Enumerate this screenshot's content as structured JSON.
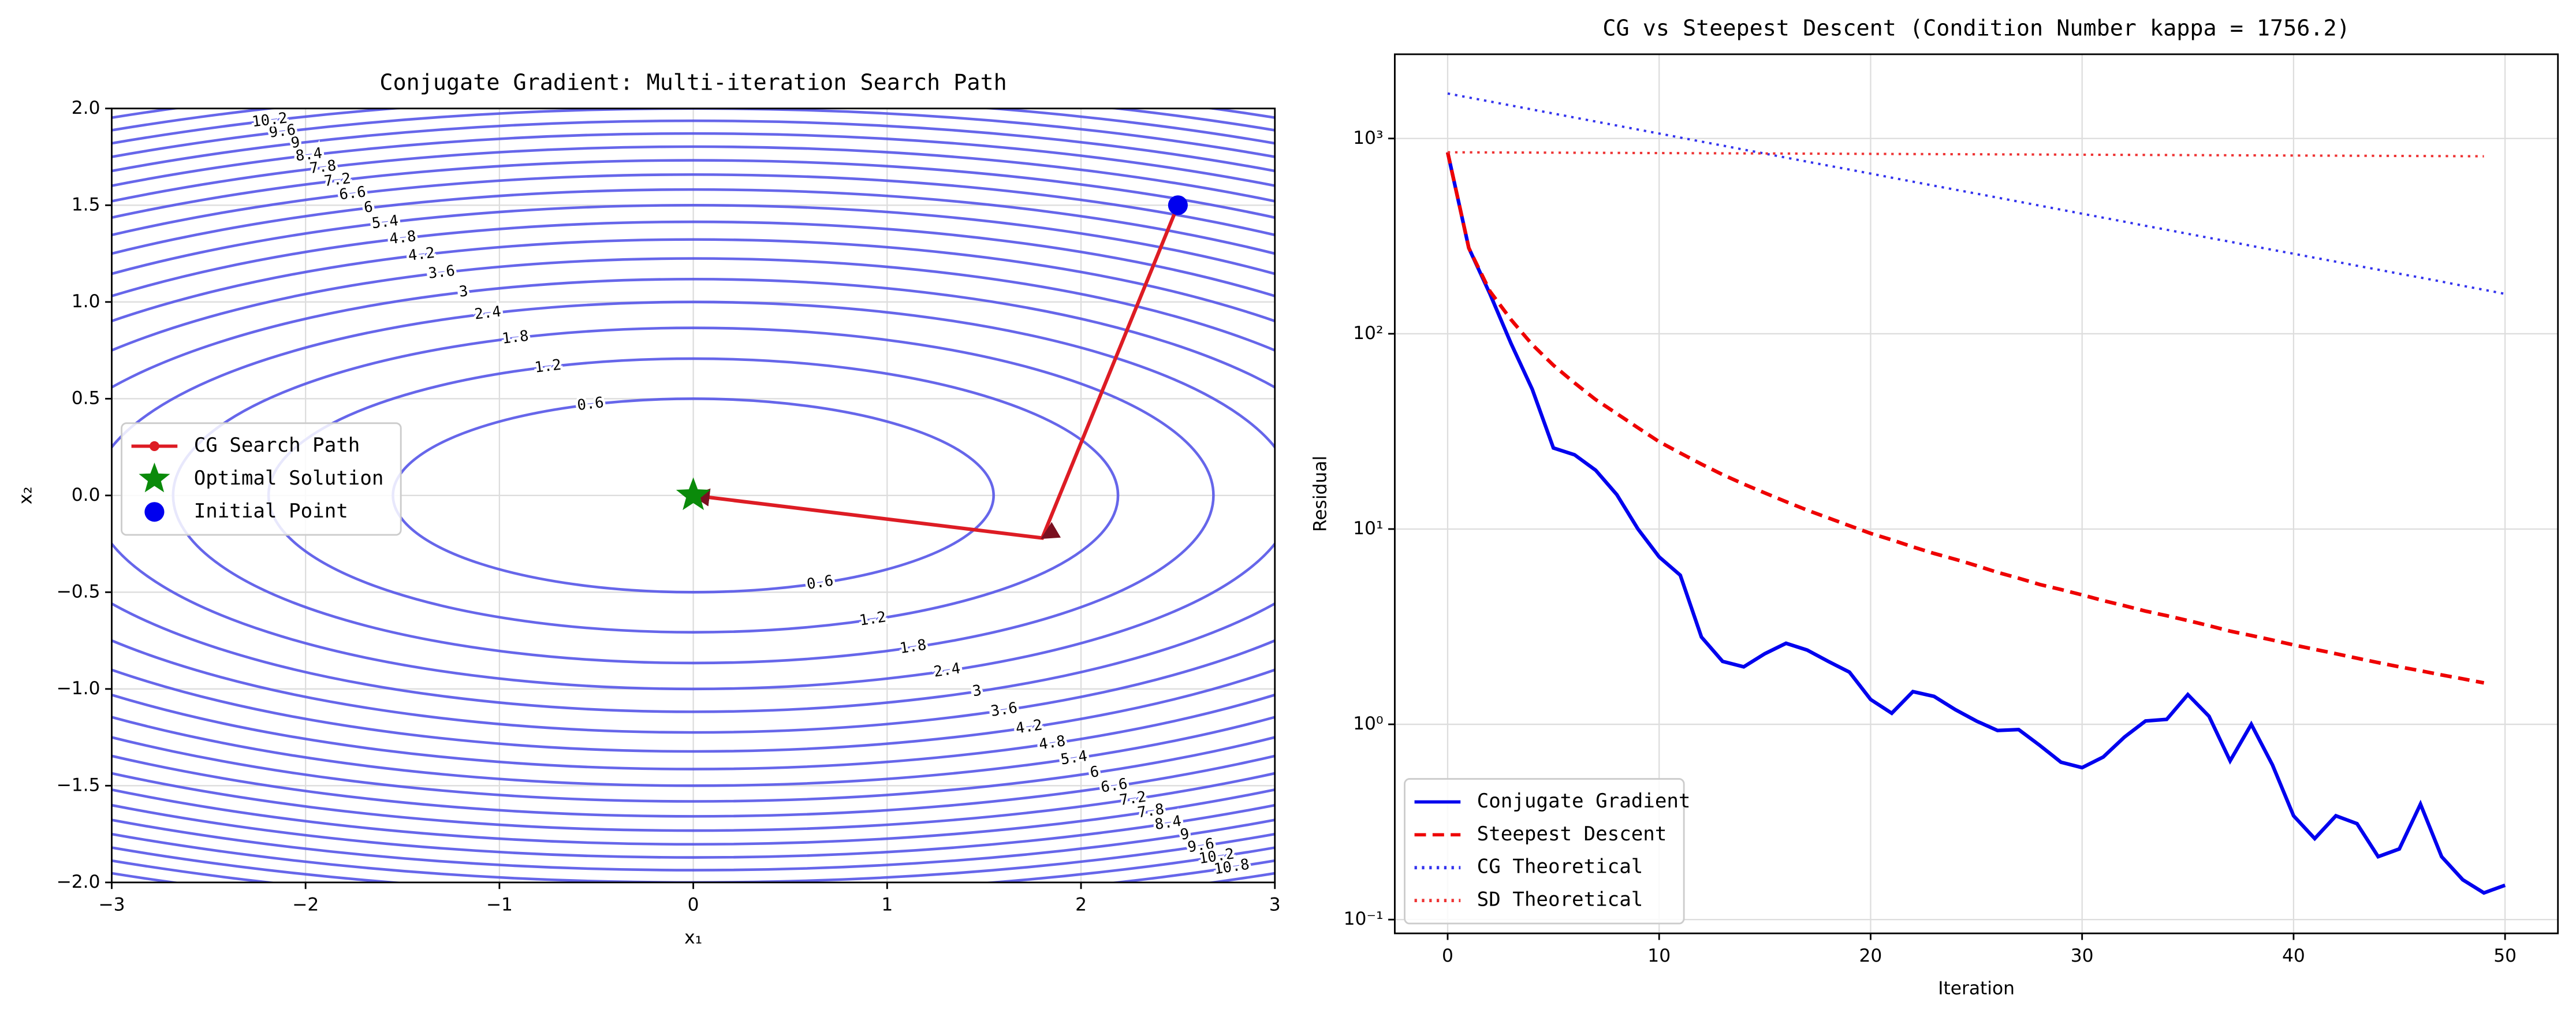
{
  "chart_data": [
    {
      "type": "contour",
      "title": "Conjugate Gradient: Multi-iteration Search Path",
      "xlabel": "x₁",
      "ylabel": "x₂",
      "xlim": [
        -3,
        3
      ],
      "ylim": [
        -2,
        2
      ],
      "xticks": [
        {
          "value": -3,
          "label": "−3"
        },
        {
          "value": -2,
          "label": "−2"
        },
        {
          "value": -1,
          "label": "−1"
        },
        0,
        1,
        2,
        3
      ],
      "yticks": [
        {
          "value": -2,
          "label": "−2.0"
        },
        {
          "value": -1.5,
          "label": "−1.5"
        },
        {
          "value": -1,
          "label": "−1.0"
        },
        {
          "value": -0.5,
          "label": "−0.5"
        },
        {
          "value": 0,
          "label": "0.0"
        },
        {
          "value": 0.5,
          "label": "0.5"
        },
        {
          "value": 1,
          "label": "1.0"
        },
        {
          "value": 1.5,
          "label": "1.5"
        },
        {
          "value": 2,
          "label": "2.0"
        }
      ],
      "grid": true,
      "legend": "center left",
      "contour_color": "#5555e8",
      "contour_levels": [
        0.6,
        1.2,
        1.8,
        2.4,
        3.0,
        3.6,
        4.2,
        4.8,
        5.4,
        6.0,
        6.6,
        7.2,
        7.8,
        8.4,
        9.0,
        9.6,
        10.2,
        10.8,
        11.4
      ],
      "series": [
        {
          "name": "CG Search Path",
          "marker": "line",
          "color": "#dd1c24",
          "x": [
            2.5,
            1.8,
            0
          ],
          "y": [
            1.5,
            -0.22,
            0
          ]
        },
        {
          "name": "Optimal Solution",
          "marker": "star",
          "color": "#0a8a0a",
          "x": [
            0
          ],
          "y": [
            0
          ]
        },
        {
          "name": "Initial Point",
          "marker": "circle",
          "color": "#0000ee",
          "x": [
            2.5
          ],
          "y": [
            1.5
          ]
        }
      ]
    },
    {
      "type": "line",
      "title": "CG vs Steepest Descent (Condition Number kappa = 1756.2)",
      "xlabel": "Iteration",
      "ylabel": "Residual",
      "x": [
        0,
        1,
        2,
        3,
        4,
        5,
        6,
        7,
        8,
        9,
        10,
        11,
        12,
        13,
        14,
        15,
        16,
        17,
        18,
        19,
        20,
        21,
        22,
        23,
        24,
        25,
        26,
        27,
        28,
        29,
        30,
        31,
        32,
        33,
        34,
        35,
        36,
        37,
        38,
        39,
        40,
        41,
        42,
        43,
        44,
        45,
        46,
        47,
        48,
        49,
        50
      ],
      "xlim": [
        -2.5,
        52.5
      ],
      "xticks": [
        0,
        10,
        20,
        30,
        40,
        50
      ],
      "ylim": [
        0.085,
        2700
      ],
      "log_y": true,
      "yticks": [
        {
          "value": 0.1,
          "label": "10⁻¹"
        },
        {
          "value": 1,
          "label": "10⁰"
        },
        {
          "value": 10,
          "label": "10¹"
        },
        {
          "value": 100,
          "label": "10²"
        },
        {
          "value": 1000,
          "label": "10³"
        }
      ],
      "grid": true,
      "legend": "lower left",
      "series": [
        {
          "name": "Conjugate Gradient",
          "color": "#0000ee",
          "dash": "solid",
          "values": [
            850,
            275,
            160,
            89,
            52,
            26,
            24,
            20,
            15,
            10,
            7.2,
            5.8,
            2.8,
            2.1,
            1.97,
            2.3,
            2.6,
            2.4,
            2.1,
            1.85,
            1.34,
            1.14,
            1.47,
            1.39,
            1.19,
            1.04,
            0.93,
            0.94,
            0.78,
            0.64,
            0.6,
            0.68,
            0.86,
            1.04,
            1.06,
            1.42,
            1.1,
            0.65,
            1.0,
            0.62,
            0.34,
            0.26,
            0.34,
            0.31,
            0.21,
            0.23,
            0.39,
            0.21,
            0.16,
            0.137,
            0.15
          ]
        },
        {
          "name": "Steepest Descent",
          "color": "#ee0000",
          "dash": "dashed",
          "values": [
            850,
            275,
            165,
            118,
            88,
            69,
            56,
            46,
            39,
            33,
            28,
            24.5,
            21.5,
            19,
            17,
            15.3,
            13.8,
            12.5,
            11.4,
            10.4,
            9.5,
            8.8,
            8.1,
            7.5,
            7.0,
            6.5,
            6.0,
            5.6,
            5.2,
            4.9,
            4.6,
            4.3,
            4.05,
            3.8,
            3.6,
            3.4,
            3.2,
            3.0,
            2.85,
            2.7,
            2.55,
            2.42,
            2.3,
            2.18,
            2.07,
            1.97,
            1.88,
            1.79,
            1.71,
            1.63,
            null
          ]
        },
        {
          "name": "CG Theoretical",
          "color": "#3333ee",
          "dash": "dotted",
          "values": [
            1700,
            1621,
            1547,
            1475,
            1407,
            1342,
            1280,
            1221,
            1165,
            1111,
            1060,
            1011,
            964,
            920,
            877,
            837,
            798,
            761,
            726,
            693,
            661,
            630,
            601,
            573,
            547,
            522,
            498,
            475,
            453,
            432,
            412,
            393,
            375,
            357,
            341,
            325,
            310,
            296,
            282,
            269,
            257,
            245,
            234,
            223,
            213,
            203,
            194,
            185,
            176,
            168,
            160
          ]
        },
        {
          "name": "SD Theoretical",
          "color": "#ee3333",
          "dash": "dotted",
          "values": [
            850,
            849.2,
            848.4,
            847.6,
            846.8,
            846,
            845.2,
            844.4,
            843.6,
            842.8,
            842,
            841.2,
            840.4,
            839.6,
            838.8,
            838,
            837.2,
            836.4,
            835.6,
            834.8,
            834,
            833.2,
            832.4,
            831.6,
            830.8,
            830,
            829.2,
            828.4,
            827.6,
            826.8,
            826,
            825.2,
            824.4,
            823.6,
            822.8,
            822,
            821.2,
            820.4,
            819.6,
            818.8,
            818,
            817.2,
            816.4,
            815.6,
            814.8,
            814,
            813.2,
            812.4,
            811.6,
            810.8,
            null
          ]
        }
      ]
    }
  ]
}
